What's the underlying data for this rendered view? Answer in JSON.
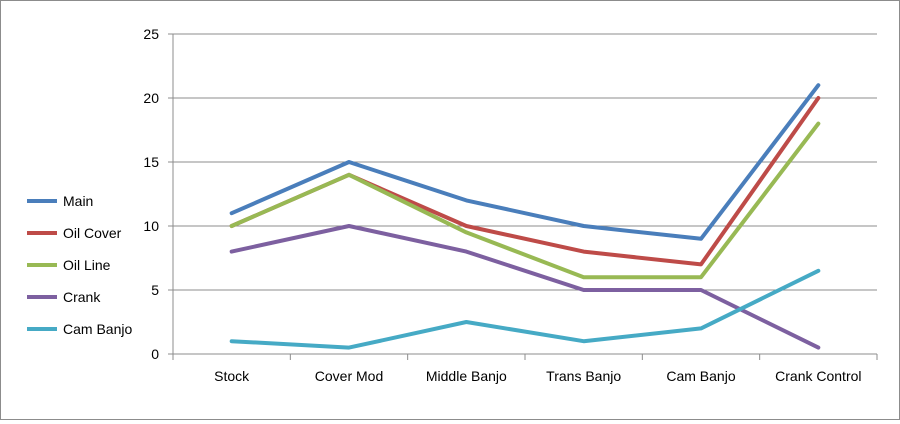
{
  "chart_data": {
    "type": "line",
    "title": "",
    "xlabel": "",
    "ylabel": "",
    "categories": [
      "Stock",
      "Cover Mod",
      "Middle Banjo",
      "Trans Banjo",
      "Cam Banjo",
      "Crank Control"
    ],
    "ylim": [
      0,
      25
    ],
    "yticks": [
      "0",
      "5",
      "10",
      "15",
      "20",
      "25"
    ],
    "grid": true,
    "legend_position": "left",
    "series": [
      {
        "name": "Main",
        "color": "#4a7ebb",
        "values": [
          11,
          15,
          12,
          10,
          9,
          21
        ]
      },
      {
        "name": "Oil Cover",
        "color": "#be4b48",
        "values": [
          10,
          14,
          10,
          8,
          7,
          20
        ]
      },
      {
        "name": "Oil Line",
        "color": "#98b954",
        "values": [
          10,
          14,
          9.5,
          6,
          6,
          18
        ]
      },
      {
        "name": "Crank",
        "color": "#7d60a0",
        "values": [
          8,
          10,
          8,
          5,
          5,
          0.5
        ]
      },
      {
        "name": "Cam Banjo",
        "color": "#46aac5",
        "values": [
          1,
          0.5,
          2.5,
          1,
          2,
          6.5
        ]
      }
    ]
  }
}
